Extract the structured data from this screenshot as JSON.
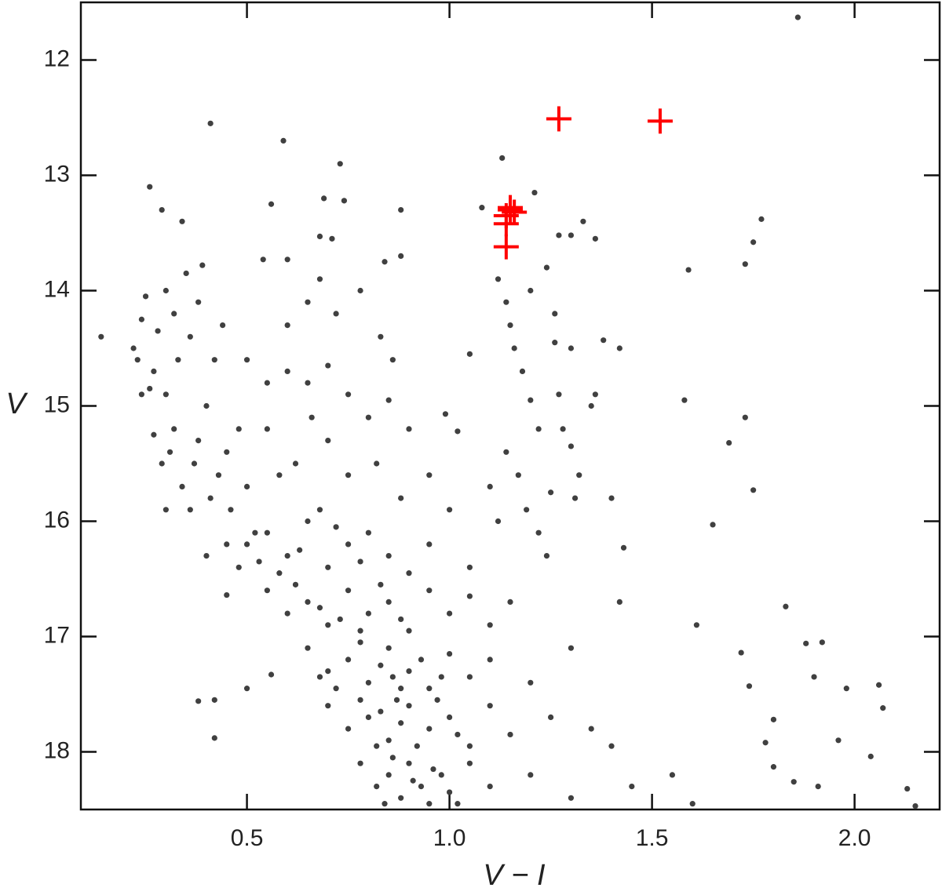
{
  "chart_data": {
    "type": "scatter",
    "xlabel": "V − I",
    "ylabel": "V",
    "xlim": [
      0.09,
      2.21
    ],
    "ylim": [
      11.5,
      18.5
    ],
    "y_inverted": true,
    "xticks": [
      0.5,
      1.0,
      1.5,
      2.0
    ],
    "yticks": [
      12,
      13,
      14,
      15,
      16,
      17,
      18
    ],
    "series": [
      {
        "color": "#404040",
        "marker": "dot",
        "x": [
          0.14,
          0.41,
          0.59,
          0.73,
          0.26,
          0.29,
          0.34,
          0.56,
          0.69,
          0.74,
          0.88,
          1.13,
          1.08,
          1.21,
          1.33,
          1.77,
          1.75,
          1.73,
          1.59,
          1.86,
          1.58,
          1.73,
          1.69,
          1.75,
          1.65,
          1.4,
          1.43,
          1.42,
          1.61,
          1.83,
          1.72,
          1.88,
          1.92,
          1.9,
          1.74,
          1.98,
          2.06,
          2.07,
          1.96,
          2.04,
          1.8,
          1.78,
          1.8,
          1.85,
          1.91,
          2.13,
          2.15,
          0.38,
          0.42,
          0.42,
          0.5,
          0.56,
          0.45,
          0.6,
          0.54,
          0.68,
          0.71,
          1.3,
          1.36,
          1.27,
          1.38,
          1.42,
          1.05,
          1.02,
          0.99,
          0.22,
          0.24,
          0.25,
          0.27,
          0.28,
          0.3,
          0.3,
          0.32,
          0.32,
          0.33,
          0.35,
          0.36,
          0.37,
          0.38,
          0.39,
          0.4,
          0.42,
          0.43,
          0.44,
          0.45,
          0.46,
          0.48,
          0.5,
          0.52,
          0.24,
          0.27,
          0.29,
          0.31,
          0.34,
          0.36,
          0.38,
          0.4,
          0.41,
          0.45,
          0.48,
          0.3,
          0.26,
          0.23,
          0.5,
          0.55,
          0.6,
          0.65,
          0.7,
          0.75,
          0.8,
          0.85,
          0.9,
          0.72,
          0.78,
          0.83,
          0.86,
          0.65,
          0.68,
          0.84,
          0.88,
          0.6,
          0.55,
          0.62,
          0.7,
          0.75,
          0.82,
          0.88,
          0.95,
          1.0,
          0.66,
          0.58,
          0.68,
          1.12,
          1.14,
          1.15,
          1.16,
          1.18,
          1.2,
          1.22,
          1.14,
          1.17,
          1.19,
          1.1,
          1.12,
          1.2,
          1.24,
          1.26,
          1.27,
          1.28,
          1.3,
          1.32,
          1.25,
          1.22,
          1.35,
          1.36,
          1.3,
          1.26,
          1.31,
          1.24,
          0.5,
          0.55,
          0.6,
          0.65,
          0.7,
          0.75,
          0.8,
          0.85,
          0.9,
          0.58,
          0.63,
          0.72,
          0.78,
          0.95,
          1.05,
          0.53,
          0.55,
          0.6,
          0.65,
          0.7,
          0.75,
          0.8,
          0.85,
          0.9,
          0.95,
          1.0,
          1.1,
          0.62,
          0.68,
          0.73,
          0.78,
          0.83,
          0.88,
          1.05,
          1.15,
          0.65,
          0.7,
          0.75,
          0.8,
          0.85,
          0.9,
          0.95,
          1.0,
          1.05,
          1.1,
          1.2,
          0.72,
          0.78,
          0.83,
          0.88,
          0.93,
          0.98,
          1.3,
          0.68,
          0.86,
          0.7,
          0.75,
          0.8,
          0.85,
          0.9,
          0.95,
          1.0,
          1.05,
          1.1,
          1.15,
          1.25,
          1.35,
          0.78,
          0.83,
          0.88,
          0.92,
          0.97,
          1.02,
          1.4,
          0.82,
          0.87,
          0.78,
          0.82,
          0.85,
          0.88,
          0.9,
          0.93,
          0.95,
          0.98,
          1.0,
          1.05,
          1.1,
          1.2,
          1.3,
          1.45,
          1.55,
          0.86,
          0.91,
          0.96,
          1.02,
          0.84,
          1.6
        ],
        "y": [
          14.4,
          12.55,
          12.7,
          12.9,
          13.1,
          13.3,
          13.4,
          13.25,
          13.2,
          13.22,
          13.3,
          12.85,
          13.28,
          13.15,
          13.4,
          13.38,
          13.58,
          13.77,
          13.82,
          11.63,
          14.95,
          15.1,
          15.32,
          15.73,
          16.03,
          15.8,
          16.23,
          16.7,
          16.9,
          16.74,
          17.14,
          17.06,
          17.05,
          17.35,
          17.43,
          17.45,
          17.42,
          17.62,
          17.9,
          18.04,
          17.72,
          17.92,
          18.13,
          18.26,
          18.3,
          18.32,
          18.47,
          17.56,
          17.55,
          17.88,
          17.45,
          17.33,
          16.64,
          13.73,
          13.73,
          13.53,
          13.55,
          13.52,
          13.55,
          13.52,
          14.43,
          14.5,
          14.55,
          15.22,
          15.07,
          14.5,
          14.25,
          14.05,
          14.7,
          14.35,
          14.0,
          14.9,
          14.2,
          15.2,
          14.6,
          13.85,
          14.4,
          15.5,
          14.1,
          13.78,
          15.0,
          14.6,
          15.6,
          14.3,
          15.4,
          15.9,
          15.2,
          15.7,
          16.1,
          14.9,
          15.25,
          15.5,
          15.4,
          15.7,
          15.9,
          15.3,
          16.3,
          15.8,
          16.2,
          16.4,
          15.9,
          14.85,
          14.6,
          14.6,
          14.8,
          14.7,
          14.8,
          14.65,
          14.9,
          15.1,
          14.95,
          15.2,
          14.2,
          14.0,
          14.4,
          14.6,
          14.1,
          13.9,
          13.75,
          13.7,
          14.3,
          15.2,
          15.5,
          15.3,
          15.6,
          15.5,
          15.8,
          15.6,
          15.9,
          15.1,
          15.6,
          15.9,
          13.9,
          14.1,
          14.3,
          14.5,
          14.7,
          14.95,
          15.2,
          15.4,
          15.6,
          15.9,
          15.7,
          16.0,
          14.0,
          13.8,
          14.45,
          14.9,
          15.2,
          15.35,
          15.6,
          15.75,
          16.1,
          15.0,
          14.9,
          14.5,
          14.2,
          15.8,
          16.3,
          16.2,
          16.1,
          16.3,
          16.0,
          16.4,
          16.2,
          16.1,
          16.3,
          16.45,
          16.45,
          16.25,
          16.05,
          16.35,
          16.2,
          16.4,
          16.35,
          16.6,
          16.8,
          16.7,
          16.9,
          16.6,
          16.8,
          16.7,
          16.95,
          16.6,
          16.8,
          16.9,
          16.55,
          16.75,
          16.85,
          16.95,
          16.55,
          16.85,
          16.65,
          16.7,
          17.1,
          17.3,
          17.2,
          17.4,
          17.1,
          17.3,
          17.45,
          17.15,
          17.35,
          17.2,
          17.4,
          17.45,
          17.05,
          17.25,
          17.45,
          17.2,
          17.35,
          17.1,
          17.35,
          17.35,
          17.6,
          17.8,
          17.7,
          17.9,
          17.6,
          17.8,
          17.7,
          17.95,
          17.6,
          17.85,
          17.7,
          17.8,
          17.55,
          17.65,
          17.75,
          17.95,
          17.55,
          17.85,
          17.95,
          17.95,
          17.55,
          18.1,
          18.3,
          18.2,
          18.4,
          18.1,
          18.3,
          18.45,
          18.2,
          18.35,
          18.1,
          18.3,
          18.2,
          18.4,
          18.3,
          18.2,
          18.05,
          18.25,
          18.15,
          18.45,
          18.45,
          18.45
        ]
      },
      {
        "color": "#ff0000",
        "marker": "plus",
        "x": [
          1.27,
          1.52,
          1.14,
          1.15,
          1.16,
          1.14,
          1.15,
          1.14
        ],
        "y": [
          12.51,
          12.53,
          13.35,
          13.3,
          13.32,
          13.42,
          13.28,
          13.62
        ]
      }
    ]
  }
}
